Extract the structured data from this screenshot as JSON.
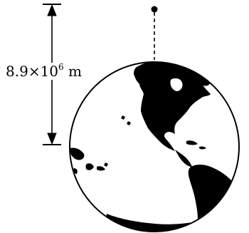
{
  "diagram": {
    "distance_label": {
      "mantissa": "8.9",
      "times": "×",
      "base": "10",
      "exponent": "6",
      "unit": "m"
    },
    "colors": {
      "ink": "#000000",
      "background": "#ffffff"
    }
  }
}
